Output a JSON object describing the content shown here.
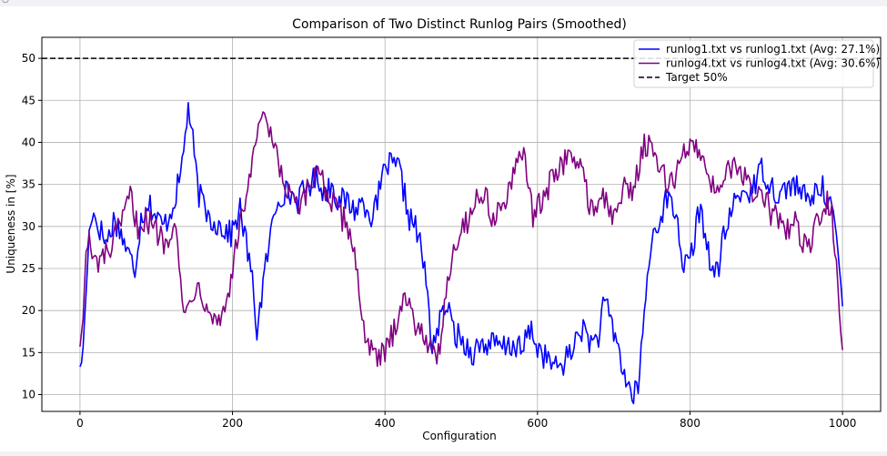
{
  "chart_data": {
    "type": "line",
    "title": "Comparison of Two Distinct Runlog Pairs (Smoothed)",
    "xlabel": "Configuration",
    "ylabel": "Uniqueness in [%]",
    "xlim": [
      -50,
      1050
    ],
    "ylim": [
      8,
      52.5
    ],
    "xticks": [
      0,
      200,
      400,
      600,
      800,
      1000
    ],
    "yticks": [
      10,
      15,
      20,
      25,
      30,
      35,
      40,
      45,
      50
    ],
    "grid": true,
    "legend_position": "top-right",
    "target": {
      "name": "Target 50%",
      "value": 50,
      "color": "#000000",
      "style": "dashed"
    },
    "series": [
      {
        "name": "runlog1.txt vs runlog1.txt (Avg: 27.1%)",
        "color": "#0000ff",
        "keypoints": [
          [
            0,
            13.3
          ],
          [
            3,
            14
          ],
          [
            8,
            22
          ],
          [
            12,
            29
          ],
          [
            15,
            32
          ],
          [
            25,
            30
          ],
          [
            35,
            28
          ],
          [
            45,
            31
          ],
          [
            55,
            29
          ],
          [
            62,
            27
          ],
          [
            72,
            25
          ],
          [
            80,
            31
          ],
          [
            90,
            33
          ],
          [
            100,
            31
          ],
          [
            110,
            30
          ],
          [
            120,
            32
          ],
          [
            132,
            36
          ],
          [
            142,
            44.3
          ],
          [
            148,
            40
          ],
          [
            155,
            34
          ],
          [
            170,
            31
          ],
          [
            185,
            30
          ],
          [
            198,
            29
          ],
          [
            210,
            32
          ],
          [
            220,
            27
          ],
          [
            228,
            22
          ],
          [
            232,
            17.5
          ],
          [
            240,
            23
          ],
          [
            250,
            29
          ],
          [
            258,
            33
          ],
          [
            265,
            34
          ],
          [
            275,
            34
          ],
          [
            285,
            33
          ],
          [
            300,
            35
          ],
          [
            312,
            36
          ],
          [
            320,
            34
          ],
          [
            330,
            35
          ],
          [
            340,
            33
          ],
          [
            350,
            33
          ],
          [
            360,
            32
          ],
          [
            372,
            33
          ],
          [
            385,
            31
          ],
          [
            395,
            35
          ],
          [
            402,
            37.5
          ],
          [
            410,
            37
          ],
          [
            418,
            37
          ],
          [
            425,
            34
          ],
          [
            432,
            31
          ],
          [
            440,
            30
          ],
          [
            448,
            27
          ],
          [
            455,
            23
          ],
          [
            460,
            16
          ],
          [
            466,
            17
          ],
          [
            474,
            19
          ],
          [
            480,
            21
          ],
          [
            488,
            18
          ],
          [
            495,
            17
          ],
          [
            505,
            16
          ],
          [
            515,
            15
          ],
          [
            525,
            16
          ],
          [
            540,
            16
          ],
          [
            555,
            15.5
          ],
          [
            570,
            16
          ],
          [
            580,
            15
          ],
          [
            590,
            18
          ],
          [
            598,
            16
          ],
          [
            605,
            15
          ],
          [
            615,
            14
          ],
          [
            625,
            13
          ],
          [
            635,
            14
          ],
          [
            645,
            15
          ],
          [
            655,
            18
          ],
          [
            665,
            17
          ],
          [
            672,
            16
          ],
          [
            680,
            17
          ],
          [
            688,
            21
          ],
          [
            695,
            19
          ],
          [
            705,
            16
          ],
          [
            712,
            13
          ],
          [
            718,
            11
          ],
          [
            725,
            10
          ],
          [
            731,
            10.2
          ],
          [
            738,
            17
          ],
          [
            745,
            25
          ],
          [
            752,
            29
          ],
          [
            760,
            31
          ],
          [
            768,
            33
          ],
          [
            775,
            33
          ],
          [
            783,
            31
          ],
          [
            790,
            26
          ],
          [
            797,
            25
          ],
          [
            805,
            28
          ],
          [
            812,
            32
          ],
          [
            818,
            30
          ],
          [
            825,
            27
          ],
          [
            830,
            24
          ],
          [
            837,
            25
          ],
          [
            845,
            29
          ],
          [
            855,
            32
          ],
          [
            865,
            34
          ],
          [
            875,
            34
          ],
          [
            885,
            35
          ],
          [
            895,
            37
          ],
          [
            905,
            35
          ],
          [
            915,
            34
          ],
          [
            922,
            34
          ],
          [
            930,
            35
          ],
          [
            938,
            35
          ],
          [
            945,
            34
          ],
          [
            955,
            33
          ],
          [
            965,
            34
          ],
          [
            970,
            35
          ],
          [
            977,
            34
          ],
          [
            985,
            33
          ],
          [
            992,
            29
          ],
          [
            998,
            23
          ],
          [
            1000,
            20.5
          ]
        ]
      },
      {
        "name": "runlog4.txt vs runlog4.txt (Avg: 30.6%)",
        "color": "#800080",
        "keypoints": [
          [
            0,
            15.7
          ],
          [
            4,
            19
          ],
          [
            8,
            27
          ],
          [
            12,
            28
          ],
          [
            18,
            25.5
          ],
          [
            28,
            26
          ],
          [
            38,
            27
          ],
          [
            48,
            29
          ],
          [
            58,
            31
          ],
          [
            65,
            34
          ],
          [
            75,
            30
          ],
          [
            85,
            31
          ],
          [
            95,
            30
          ],
          [
            105,
            29
          ],
          [
            112,
            28
          ],
          [
            120,
            30
          ],
          [
            125,
            32
          ],
          [
            128,
            28
          ],
          [
            132,
            23
          ],
          [
            136,
            19
          ],
          [
            140,
            20
          ],
          [
            145,
            22
          ],
          [
            152,
            23
          ],
          [
            160,
            22
          ],
          [
            168,
            21
          ],
          [
            176,
            19
          ],
          [
            184,
            19
          ],
          [
            192,
            21
          ],
          [
            198,
            24
          ],
          [
            204,
            27
          ],
          [
            212,
            31
          ],
          [
            220,
            35
          ],
          [
            228,
            38
          ],
          [
            236,
            43
          ],
          [
            242,
            42
          ],
          [
            250,
            41
          ],
          [
            258,
            38
          ],
          [
            264,
            36
          ],
          [
            272,
            34
          ],
          [
            280,
            33
          ],
          [
            290,
            32
          ],
          [
            298,
            34
          ],
          [
            305,
            35
          ],
          [
            312,
            38
          ],
          [
            320,
            35
          ],
          [
            328,
            33
          ],
          [
            336,
            32
          ],
          [
            344,
            31
          ],
          [
            352,
            30
          ],
          [
            358,
            28
          ],
          [
            364,
            24
          ],
          [
            370,
            19
          ],
          [
            376,
            17
          ],
          [
            382,
            15
          ],
          [
            388,
            14
          ],
          [
            394,
            14.5
          ],
          [
            400,
            15
          ],
          [
            406,
            16
          ],
          [
            412,
            18
          ],
          [
            418,
            20
          ],
          [
            424,
            22
          ],
          [
            430,
            21
          ],
          [
            436,
            19
          ],
          [
            442,
            18.5
          ],
          [
            448,
            18
          ],
          [
            454,
            17
          ],
          [
            460,
            15
          ],
          [
            466,
            14
          ],
          [
            472,
            16
          ],
          [
            478,
            21
          ],
          [
            484,
            25
          ],
          [
            490,
            27
          ],
          [
            496,
            29
          ],
          [
            502,
            30
          ],
          [
            510,
            31
          ],
          [
            518,
            33
          ],
          [
            526,
            34
          ],
          [
            534,
            33
          ],
          [
            542,
            31
          ],
          [
            550,
            32
          ],
          [
            558,
            33
          ],
          [
            566,
            35
          ],
          [
            574,
            37
          ],
          [
            582,
            39
          ],
          [
            588,
            36
          ],
          [
            594,
            31
          ],
          [
            600,
            32
          ],
          [
            606,
            33
          ],
          [
            612,
            34
          ],
          [
            620,
            36
          ],
          [
            628,
            37
          ],
          [
            636,
            38
          ],
          [
            644,
            38
          ],
          [
            652,
            38
          ],
          [
            660,
            36
          ],
          [
            668,
            33
          ],
          [
            676,
            32
          ],
          [
            684,
            34
          ],
          [
            692,
            32
          ],
          [
            700,
            31
          ],
          [
            708,
            33
          ],
          [
            716,
            35
          ],
          [
            724,
            34
          ],
          [
            732,
            37
          ],
          [
            740,
            40
          ],
          [
            748,
            39
          ],
          [
            756,
            38
          ],
          [
            764,
            36
          ],
          [
            772,
            35
          ],
          [
            780,
            36
          ],
          [
            788,
            38
          ],
          [
            796,
            39
          ],
          [
            804,
            40
          ],
          [
            812,
            39
          ],
          [
            820,
            38
          ],
          [
            828,
            35
          ],
          [
            836,
            34
          ],
          [
            844,
            37
          ],
          [
            852,
            36
          ],
          [
            860,
            37
          ],
          [
            868,
            36
          ],
          [
            876,
            35
          ],
          [
            884,
            34
          ],
          [
            892,
            34
          ],
          [
            900,
            33
          ],
          [
            908,
            31
          ],
          [
            916,
            31
          ],
          [
            924,
            30
          ],
          [
            930,
            29
          ],
          [
            936,
            31
          ],
          [
            942,
            30
          ],
          [
            948,
            28
          ],
          [
            955,
            27
          ],
          [
            962,
            29
          ],
          [
            968,
            31
          ],
          [
            974,
            31
          ],
          [
            980,
            33
          ],
          [
            986,
            32
          ],
          [
            992,
            26
          ],
          [
            997,
            18
          ],
          [
            1000,
            15.3
          ]
        ]
      }
    ]
  }
}
